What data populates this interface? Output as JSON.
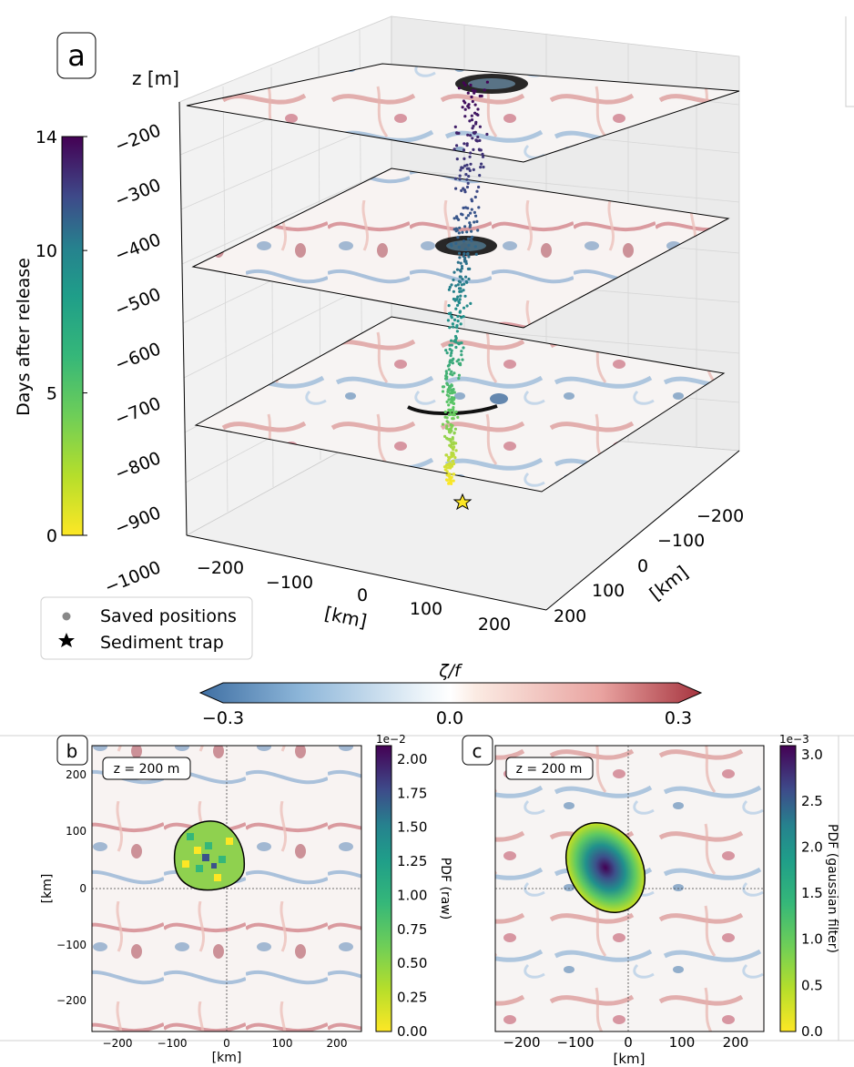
{
  "colors": {
    "vorticity_negative": "#4a7fb5",
    "vorticity_positive": "#b2363f",
    "viridis_low": "#fde725",
    "viridis_high": "#440154",
    "axis_line": "#000000",
    "frame_line": "#888888"
  },
  "panel_a": {
    "label": "a",
    "z_axis_title": "z [m]",
    "z_ticks": [
      "−200",
      "−300",
      "−400",
      "−500",
      "−600",
      "−700",
      "−800",
      "−900",
      "−1000"
    ],
    "x_ticks": [
      "−200",
      "−100",
      "0",
      "100",
      "200"
    ],
    "x_axis_title": "[km]",
    "y_ticks": [
      "−200",
      "−100",
      "0",
      "100",
      "200"
    ],
    "y_axis_title": "[km]",
    "colorbar_title": "Days after release",
    "colorbar_ticks": [
      "0",
      "5",
      "10",
      "14"
    ],
    "legend": {
      "saved_positions": "Saved positions",
      "sediment_trap": "Sediment trap"
    }
  },
  "vorticity_colorbar": {
    "title": "ζ/f",
    "ticks": [
      "−0.3",
      "0.0",
      "0.3"
    ]
  },
  "panel_b": {
    "label": "b",
    "depth_label": "z = 200 m",
    "x_ticks": [
      "−200",
      "−100",
      "0",
      "100",
      "200"
    ],
    "y_ticks": [
      "200",
      "100",
      "0",
      "−100",
      "−200"
    ],
    "xlabel": "[km]",
    "ylabel": "[km]",
    "colorbar_title": "PDF (raw)",
    "colorbar_scale": "1e−2",
    "colorbar_ticks": [
      "0.00",
      "0.25",
      "0.50",
      "0.75",
      "1.00",
      "1.25",
      "1.50",
      "1.75",
      "2.00"
    ]
  },
  "panel_c": {
    "label": "c",
    "depth_label": "z = 200 m",
    "x_ticks": [
      "−200",
      "−100",
      "0",
      "100",
      "200"
    ],
    "xlabel": "[km]",
    "colorbar_title": "PDF (gaussian filter)",
    "colorbar_scale": "1e−3",
    "colorbar_ticks": [
      "0.0",
      "0.5",
      "1.0",
      "1.5",
      "2.0",
      "2.5",
      "3.0"
    ]
  },
  "chart_data": [
    {
      "type": "scatter",
      "panel": "a",
      "zlabel": "z [m]",
      "xlabel": "[km]",
      "ylabel": "[km]",
      "zlim": [
        -1000,
        -200
      ],
      "xlim": [
        -250,
        250
      ],
      "ylim": [
        -250,
        250
      ],
      "slice_depths": [
        -200,
        -500,
        -800
      ],
      "color_variable": "Days after release",
      "color_range": [
        0,
        14
      ],
      "trajectory": [
        {
          "day": 0,
          "z": -940,
          "x": 40,
          "y": 60
        },
        {
          "day": 2,
          "z": -870,
          "x": 20,
          "y": 40
        },
        {
          "day": 4,
          "z": -790,
          "x": -20,
          "y": 20
        },
        {
          "day": 6,
          "z": -700,
          "x": -10,
          "y": 10
        },
        {
          "day": 8,
          "z": -580,
          "x": 0,
          "y": 0
        },
        {
          "day": 10,
          "z": -470,
          "x": 10,
          "y": -10
        },
        {
          "day": 12,
          "z": -330,
          "x": 20,
          "y": -20
        },
        {
          "day": 14,
          "z": -200,
          "x": 20,
          "y": -20
        }
      ],
      "sediment_trap": {
        "x": 50,
        "y": 70,
        "z": -950
      },
      "legend": [
        "Saved positions",
        "Sediment trap"
      ]
    },
    {
      "type": "heatmap",
      "panel": "b",
      "title": "z = 200 m",
      "xlim": [
        -260,
        250
      ],
      "ylim": [
        -260,
        250
      ],
      "xlabel": "[km]",
      "ylabel": "[km]",
      "colorbar_label": "PDF (raw)",
      "colorbar_range": [
        0,
        0.021
      ],
      "pdf_region": {
        "center_x": -40,
        "center_y": 45,
        "radius_x": 65,
        "radius_y": 50
      }
    },
    {
      "type": "heatmap",
      "panel": "c",
      "title": "z = 200 m",
      "xlim": [
        -250,
        250
      ],
      "ylim": [
        -260,
        250
      ],
      "xlabel": "[km]",
      "colorbar_label": "PDF (gaussian filter)",
      "colorbar_range": [
        0,
        0.0031
      ],
      "pdf_region": {
        "center_x": -40,
        "center_y": 45,
        "radius_x": 75,
        "radius_y": 85,
        "peak_value": 0.0031
      }
    }
  ]
}
